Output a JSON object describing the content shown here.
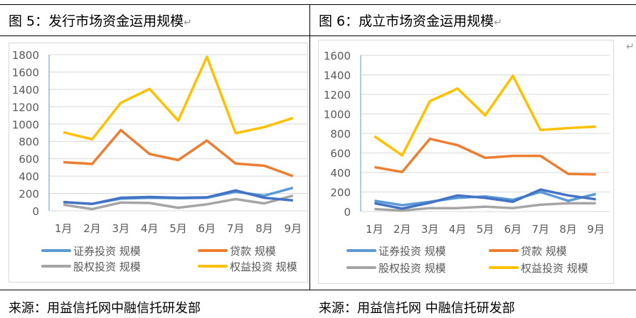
{
  "left_title": "图 5：发行市场资金运用规模",
  "right_title": "图 6：成立市场资金运用规模",
  "left_source": "来源：用益信托网中融信托研发部",
  "right_source": "来源：用益信托网 中融信托研发部",
  "return_mark": "↵",
  "chart_data": [
    {
      "type": "line",
      "title": "发行市场资金运用规模",
      "categories": [
        "1月",
        "2月",
        "3月",
        "4月",
        "5月",
        "6月",
        "7月",
        "8月",
        "9月"
      ],
      "ylim": [
        0,
        1800
      ],
      "yticks": [
        0,
        200,
        400,
        600,
        800,
        1000,
        1200,
        1400,
        1600,
        1800
      ],
      "grid": true,
      "legend": "bottom",
      "series": [
        {
          "name": "证券投资 规模",
          "color": "#5b9bd5",
          "values": [
            100,
            80,
            140,
            150,
            145,
            150,
            220,
            175,
            265
          ]
        },
        {
          "name": "贷款 规模",
          "color": "#ed7d31",
          "values": [
            560,
            540,
            930,
            655,
            585,
            810,
            545,
            520,
            400
          ]
        },
        {
          "name": "股权投资 规模",
          "color": "#a5a5a5",
          "values": [
            70,
            20,
            95,
            90,
            35,
            75,
            135,
            85,
            175
          ]
        },
        {
          "name": "权益投资 规模",
          "color": "#ffc000",
          "values": [
            905,
            825,
            1245,
            1405,
            1040,
            1775,
            895,
            965,
            1070
          ]
        },
        {
          "name": "",
          "color": "#4472c4",
          "values": [
            100,
            80,
            150,
            160,
            150,
            155,
            235,
            150,
            120
          ]
        }
      ]
    },
    {
      "type": "line",
      "title": "成立市场资金运用规模",
      "categories": [
        "1月",
        "2月",
        "3月",
        "4月",
        "5月",
        "6月",
        "7月",
        "8月",
        "9月"
      ],
      "ylim": [
        0,
        1600
      ],
      "yticks": [
        0,
        200,
        400,
        600,
        800,
        1000,
        1200,
        1400,
        1600
      ],
      "grid": true,
      "legend": "bottom",
      "series": [
        {
          "name": "证券投资 规模",
          "color": "#5b9bd5",
          "values": [
            110,
            65,
            100,
            140,
            155,
            120,
            200,
            110,
            180
          ]
        },
        {
          "name": "贷款 规模",
          "color": "#ed7d31",
          "values": [
            455,
            405,
            745,
            680,
            550,
            570,
            570,
            385,
            380
          ]
        },
        {
          "name": "股权投资 规模",
          "color": "#a5a5a5",
          "values": [
            25,
            10,
            35,
            35,
            50,
            35,
            70,
            85,
            85
          ]
        },
        {
          "name": "权益投资 规模",
          "color": "#ffc000",
          "values": [
            770,
            575,
            1130,
            1260,
            985,
            1390,
            835,
            855,
            870
          ]
        },
        {
          "name": "",
          "color": "#4472c4",
          "values": [
            85,
            30,
            90,
            165,
            140,
            100,
            225,
            165,
            125
          ]
        }
      ]
    }
  ]
}
